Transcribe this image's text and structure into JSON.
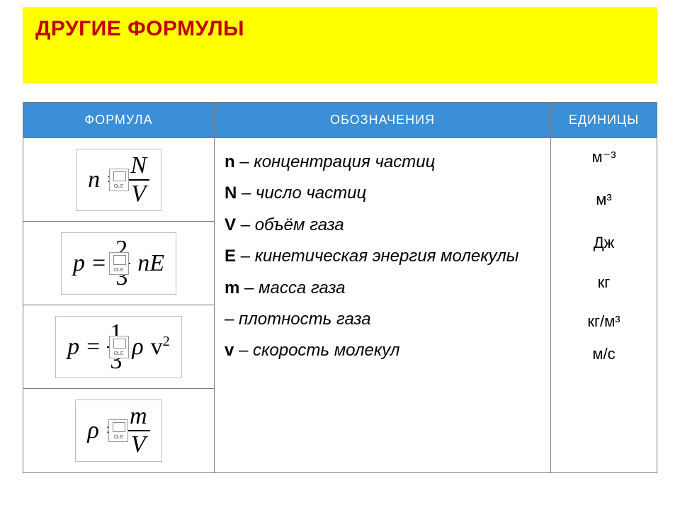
{
  "colors": {
    "title_bg": "#ffff00",
    "title_fg": "#c00000",
    "header_bg": "#3a8fd6",
    "header_fg": "#ffffff",
    "border": "#7a7a7a"
  },
  "title": "ДРУГИЕ   ФОРМУЛЫ",
  "headers": {
    "formula": "ФОРМУЛА",
    "notation": "ОБОЗНАЧЕНИЯ",
    "units": "ЕДИНИЦЫ"
  },
  "formulas": {
    "f1": {
      "lhs": "n",
      "eq": "=",
      "num": "N",
      "den": "V"
    },
    "f2": {
      "lhs": "p",
      "eq": "=",
      "num": "2",
      "den": "3",
      "tail": "nE"
    },
    "f3": {
      "lhs": "p",
      "eq": "=",
      "num": "1",
      "den": "3",
      "rho": "ρ",
      "v": "v",
      "exp": "2"
    },
    "f4": {
      "lhs": "ρ",
      "eq": "=",
      "num": "m",
      "den": "V"
    }
  },
  "ole_label": "OLE",
  "notation_lines": [
    {
      "sym": "n",
      "dash": " – ",
      "txt": "концентрация частиц"
    },
    {
      "sym": "N",
      "dash": " – ",
      "txt": "число частиц"
    },
    {
      "sym": "V",
      "dash": " – ",
      "txt": "объём газа"
    },
    {
      "sym": "E",
      "dash": " – ",
      "txt": "кинетическая энергия молекулы"
    },
    {
      "sym": "m",
      "dash": " – ",
      "txt": "масса газа"
    },
    {
      "sym": "",
      "dash": "   – ",
      "txt": "плотность газа"
    },
    {
      "sym": "v",
      "dash": " – ",
      "txt": " скорость молекул"
    }
  ],
  "units": [
    "м⁻³",
    "м³",
    "Дж",
    "кг",
    "кг/м³",
    "м/с"
  ]
}
